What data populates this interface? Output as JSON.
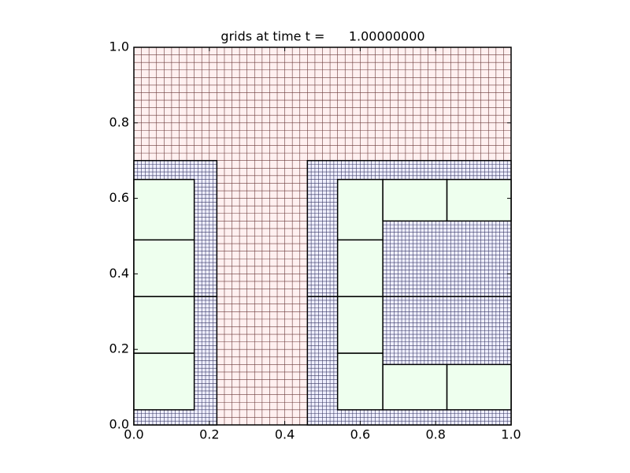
{
  "chart_data": {
    "type": "patches",
    "title": "grids at time t =      1.00000000",
    "xlim": [
      0,
      1
    ],
    "ylim": [
      0,
      1
    ],
    "xticks": [
      {
        "value": 0,
        "label": "0.0"
      },
      {
        "value": 0.2,
        "label": "0.2"
      },
      {
        "value": 0.4,
        "label": "0.4"
      },
      {
        "value": 0.6,
        "label": "0.6"
      },
      {
        "value": 0.8,
        "label": "0.8"
      },
      {
        "value": 1,
        "label": "1.0"
      }
    ],
    "yticks": [
      {
        "value": 0,
        "label": "0.0"
      },
      {
        "value": 0.2,
        "label": "0.2"
      },
      {
        "value": 0.4,
        "label": "0.4"
      },
      {
        "value": 0.6,
        "label": "0.6"
      },
      {
        "value": 0.8,
        "label": "0.8"
      },
      {
        "value": 1,
        "label": "1.0"
      }
    ],
    "levels": [
      {
        "color": "#fff0f0",
        "linecolor": "#6b3b3b",
        "dx": 0.02,
        "patches": [
          [
            0,
            1,
            0,
            1
          ]
        ]
      },
      {
        "color": "#f0f0ff",
        "linecolor": "#3a3a66",
        "dx": 0.01,
        "patches": [
          [
            0,
            0.22,
            0,
            0.34
          ],
          [
            0,
            0.22,
            0.34,
            0.7
          ],
          [
            0.46,
            1,
            0,
            0.34
          ],
          [
            0.46,
            1,
            0.34,
            0.7
          ]
        ]
      },
      {
        "color": "#eeffee",
        "linecolor": null,
        "dx": null,
        "patches": [
          [
            0,
            0.16,
            0.04,
            0.19
          ],
          [
            0,
            0.16,
            0.19,
            0.34
          ],
          [
            0,
            0.16,
            0.34,
            0.49
          ],
          [
            0,
            0.16,
            0.49,
            0.65
          ],
          [
            0.54,
            0.66,
            0.04,
            0.19
          ],
          [
            0.54,
            0.66,
            0.19,
            0.34
          ],
          [
            0.54,
            0.66,
            0.34,
            0.49
          ],
          [
            0.54,
            0.66,
            0.49,
            0.65
          ],
          [
            0.66,
            0.83,
            0.54,
            0.65
          ],
          [
            0.83,
            1,
            0.54,
            0.65
          ],
          [
            0.66,
            0.83,
            0.04,
            0.16
          ],
          [
            0.83,
            1,
            0.04,
            0.16
          ]
        ]
      }
    ]
  }
}
